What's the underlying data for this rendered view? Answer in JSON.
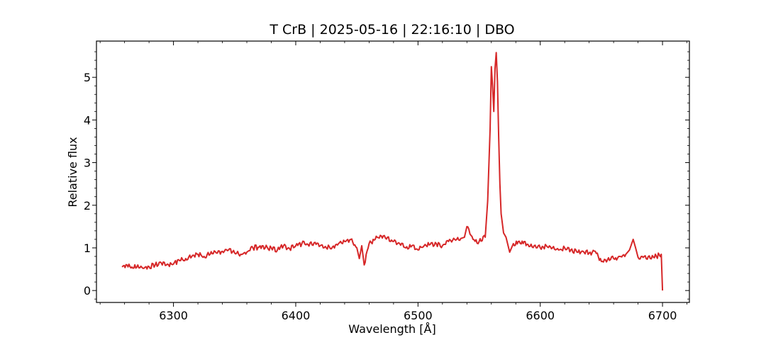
{
  "chart_data": {
    "type": "line",
    "title": "T CrB | 2025-05-16 | 22:16:10 | DBO",
    "xlabel": "Wavelength [Å]",
    "ylabel": "Relative flux",
    "xlim": [
      6237,
      6722
    ],
    "ylim": [
      -0.28,
      5.85
    ],
    "xticks": [
      6300,
      6400,
      6500,
      6600,
      6700
    ],
    "yticks": [
      0,
      1,
      2,
      3,
      4,
      5
    ],
    "grid": false,
    "line_color": "#d62728",
    "series": [
      {
        "x": [
          6258,
          6262,
          6266,
          6270,
          6275,
          6280,
          6285,
          6290,
          6295,
          6300,
          6305,
          6310,
          6315,
          6320,
          6325,
          6330,
          6335,
          6340,
          6345,
          6350,
          6355,
          6360,
          6365,
          6370,
          6375,
          6380,
          6385,
          6390,
          6395,
          6400,
          6405,
          6410,
          6415,
          6420,
          6425,
          6430,
          6435,
          6440,
          6445,
          6450,
          6452,
          6454,
          6456,
          6460,
          6465,
          6470,
          6475,
          6480,
          6485,
          6490,
          6495,
          6500,
          6505,
          6510,
          6515,
          6520,
          6525,
          6530,
          6535,
          6538,
          6540,
          6545,
          6550,
          6555,
          6557,
          6559,
          6560,
          6561,
          6562,
          6563,
          6564,
          6565,
          6566,
          6567,
          6568,
          6570,
          6572,
          6575,
          6578,
          6582,
          6586,
          6590,
          6595,
          6600,
          6605,
          6610,
          6615,
          6620,
          6625,
          6630,
          6635,
          6640,
          6645,
          6650,
          6655,
          6660,
          6665,
          6670,
          6673,
          6676,
          6678,
          6680,
          6685,
          6690,
          6695,
          6699,
          6700
        ],
        "y": [
          0.55,
          0.6,
          0.55,
          0.55,
          0.52,
          0.56,
          0.6,
          0.65,
          0.62,
          0.62,
          0.7,
          0.75,
          0.8,
          0.85,
          0.8,
          0.85,
          0.88,
          0.92,
          0.95,
          0.88,
          0.85,
          0.9,
          1.0,
          1.02,
          1.0,
          1.0,
          0.95,
          1.05,
          0.98,
          1.05,
          1.1,
          1.08,
          1.12,
          1.05,
          1.0,
          1.02,
          1.1,
          1.15,
          1.2,
          1.0,
          0.75,
          1.05,
          0.6,
          1.1,
          1.2,
          1.28,
          1.25,
          1.15,
          1.1,
          1.0,
          1.05,
          0.95,
          1.05,
          1.08,
          1.1,
          1.05,
          1.15,
          1.2,
          1.22,
          1.25,
          1.5,
          1.2,
          1.15,
          1.25,
          2.1,
          3.8,
          5.25,
          4.8,
          4.2,
          5.2,
          5.58,
          4.9,
          3.6,
          2.5,
          1.8,
          1.35,
          1.25,
          0.9,
          1.1,
          1.15,
          1.1,
          1.08,
          1.05,
          1.0,
          1.05,
          1.0,
          0.95,
          1.0,
          0.95,
          0.9,
          0.92,
          0.88,
          0.92,
          0.68,
          0.72,
          0.75,
          0.8,
          0.85,
          0.95,
          1.2,
          1.0,
          0.78,
          0.8,
          0.75,
          0.8,
          0.85,
          0.0
        ]
      }
    ]
  }
}
